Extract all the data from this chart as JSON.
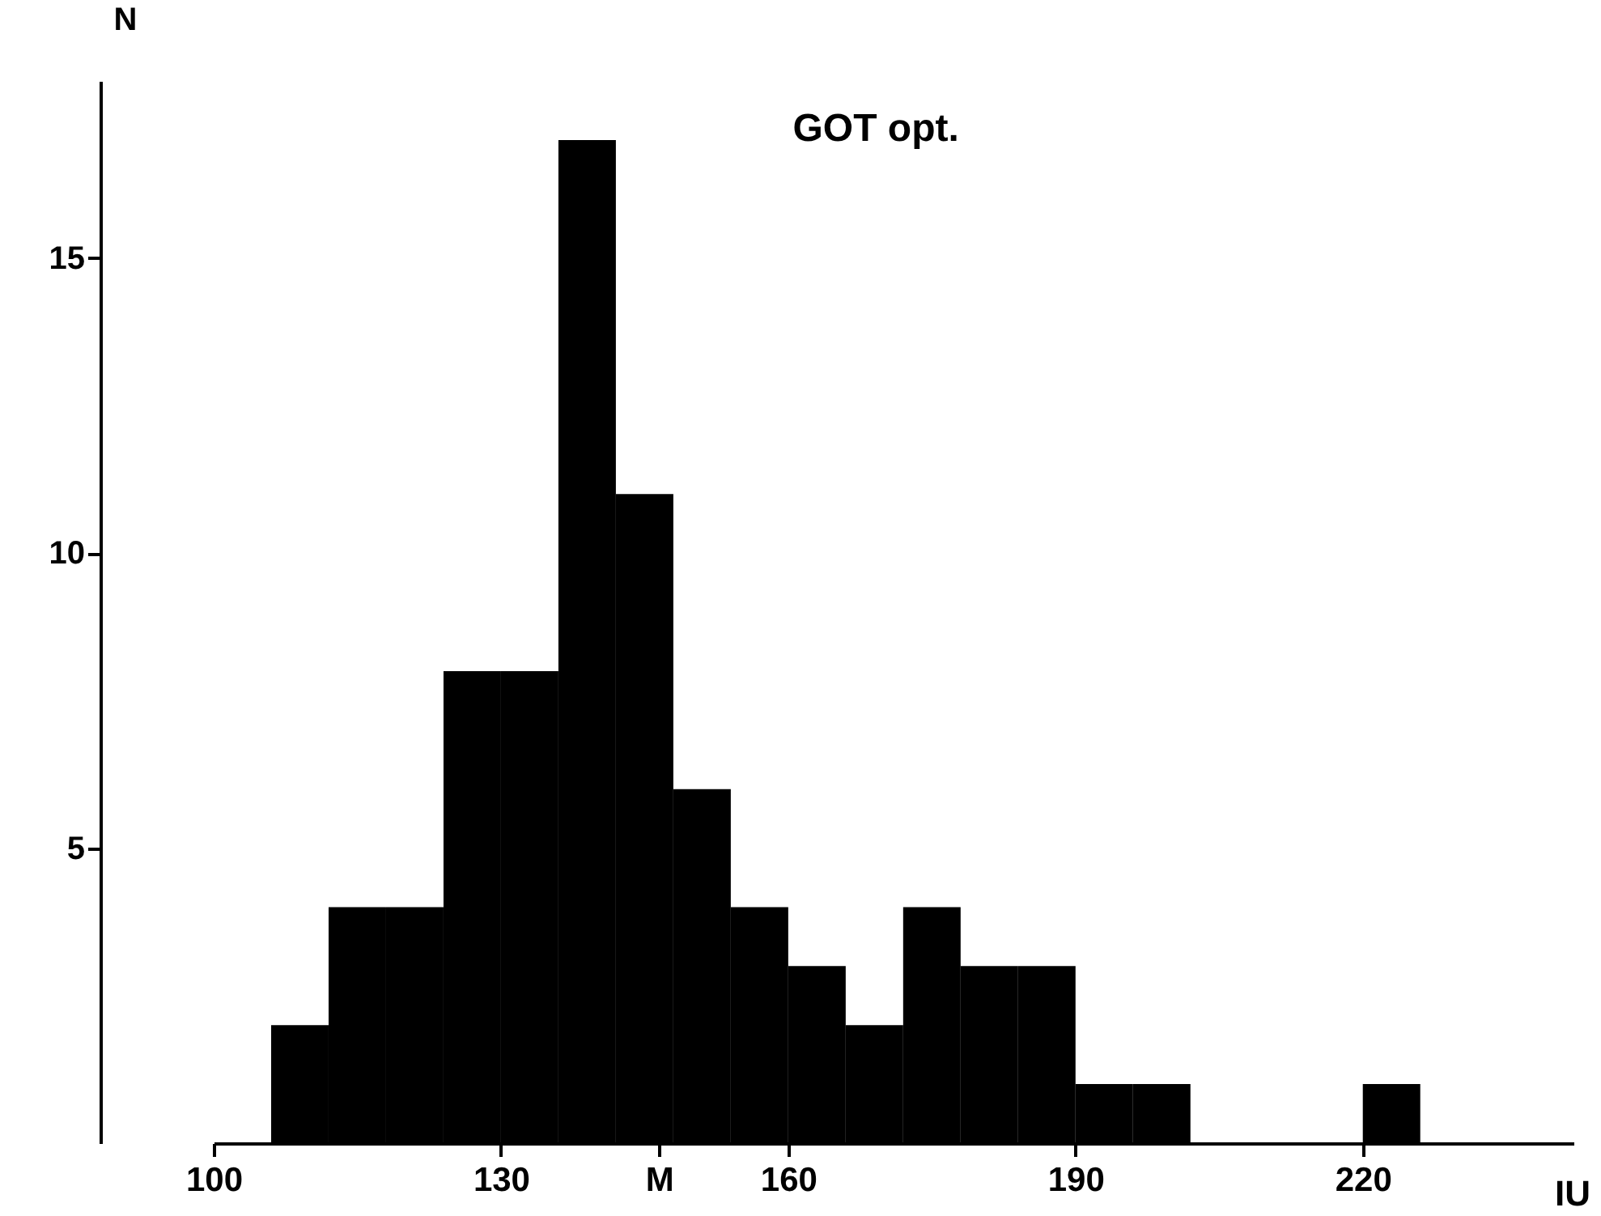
{
  "chart_data": {
    "type": "histogram",
    "title": "GOT opt.",
    "xlabel": "IU",
    "ylabel": "N",
    "bins": [
      106,
      112,
      118,
      124,
      130,
      136,
      142,
      148,
      154,
      160,
      166,
      172,
      178,
      184,
      190,
      196,
      202,
      208,
      214,
      220,
      226
    ],
    "values": [
      2,
      4,
      4,
      8,
      8,
      17,
      11,
      6,
      4,
      3,
      2,
      4,
      3,
      3,
      1,
      1,
      0,
      0,
      0,
      1
    ],
    "color": "#000000",
    "xlim": [
      100,
      242
    ],
    "xticks": [
      100,
      130,
      {
        "value": 146.5,
        "label": "M"
      },
      160,
      190,
      220
    ],
    "ylim": [
      0,
      18
    ],
    "yticks": [
      5,
      10,
      15
    ],
    "grid": false
  }
}
